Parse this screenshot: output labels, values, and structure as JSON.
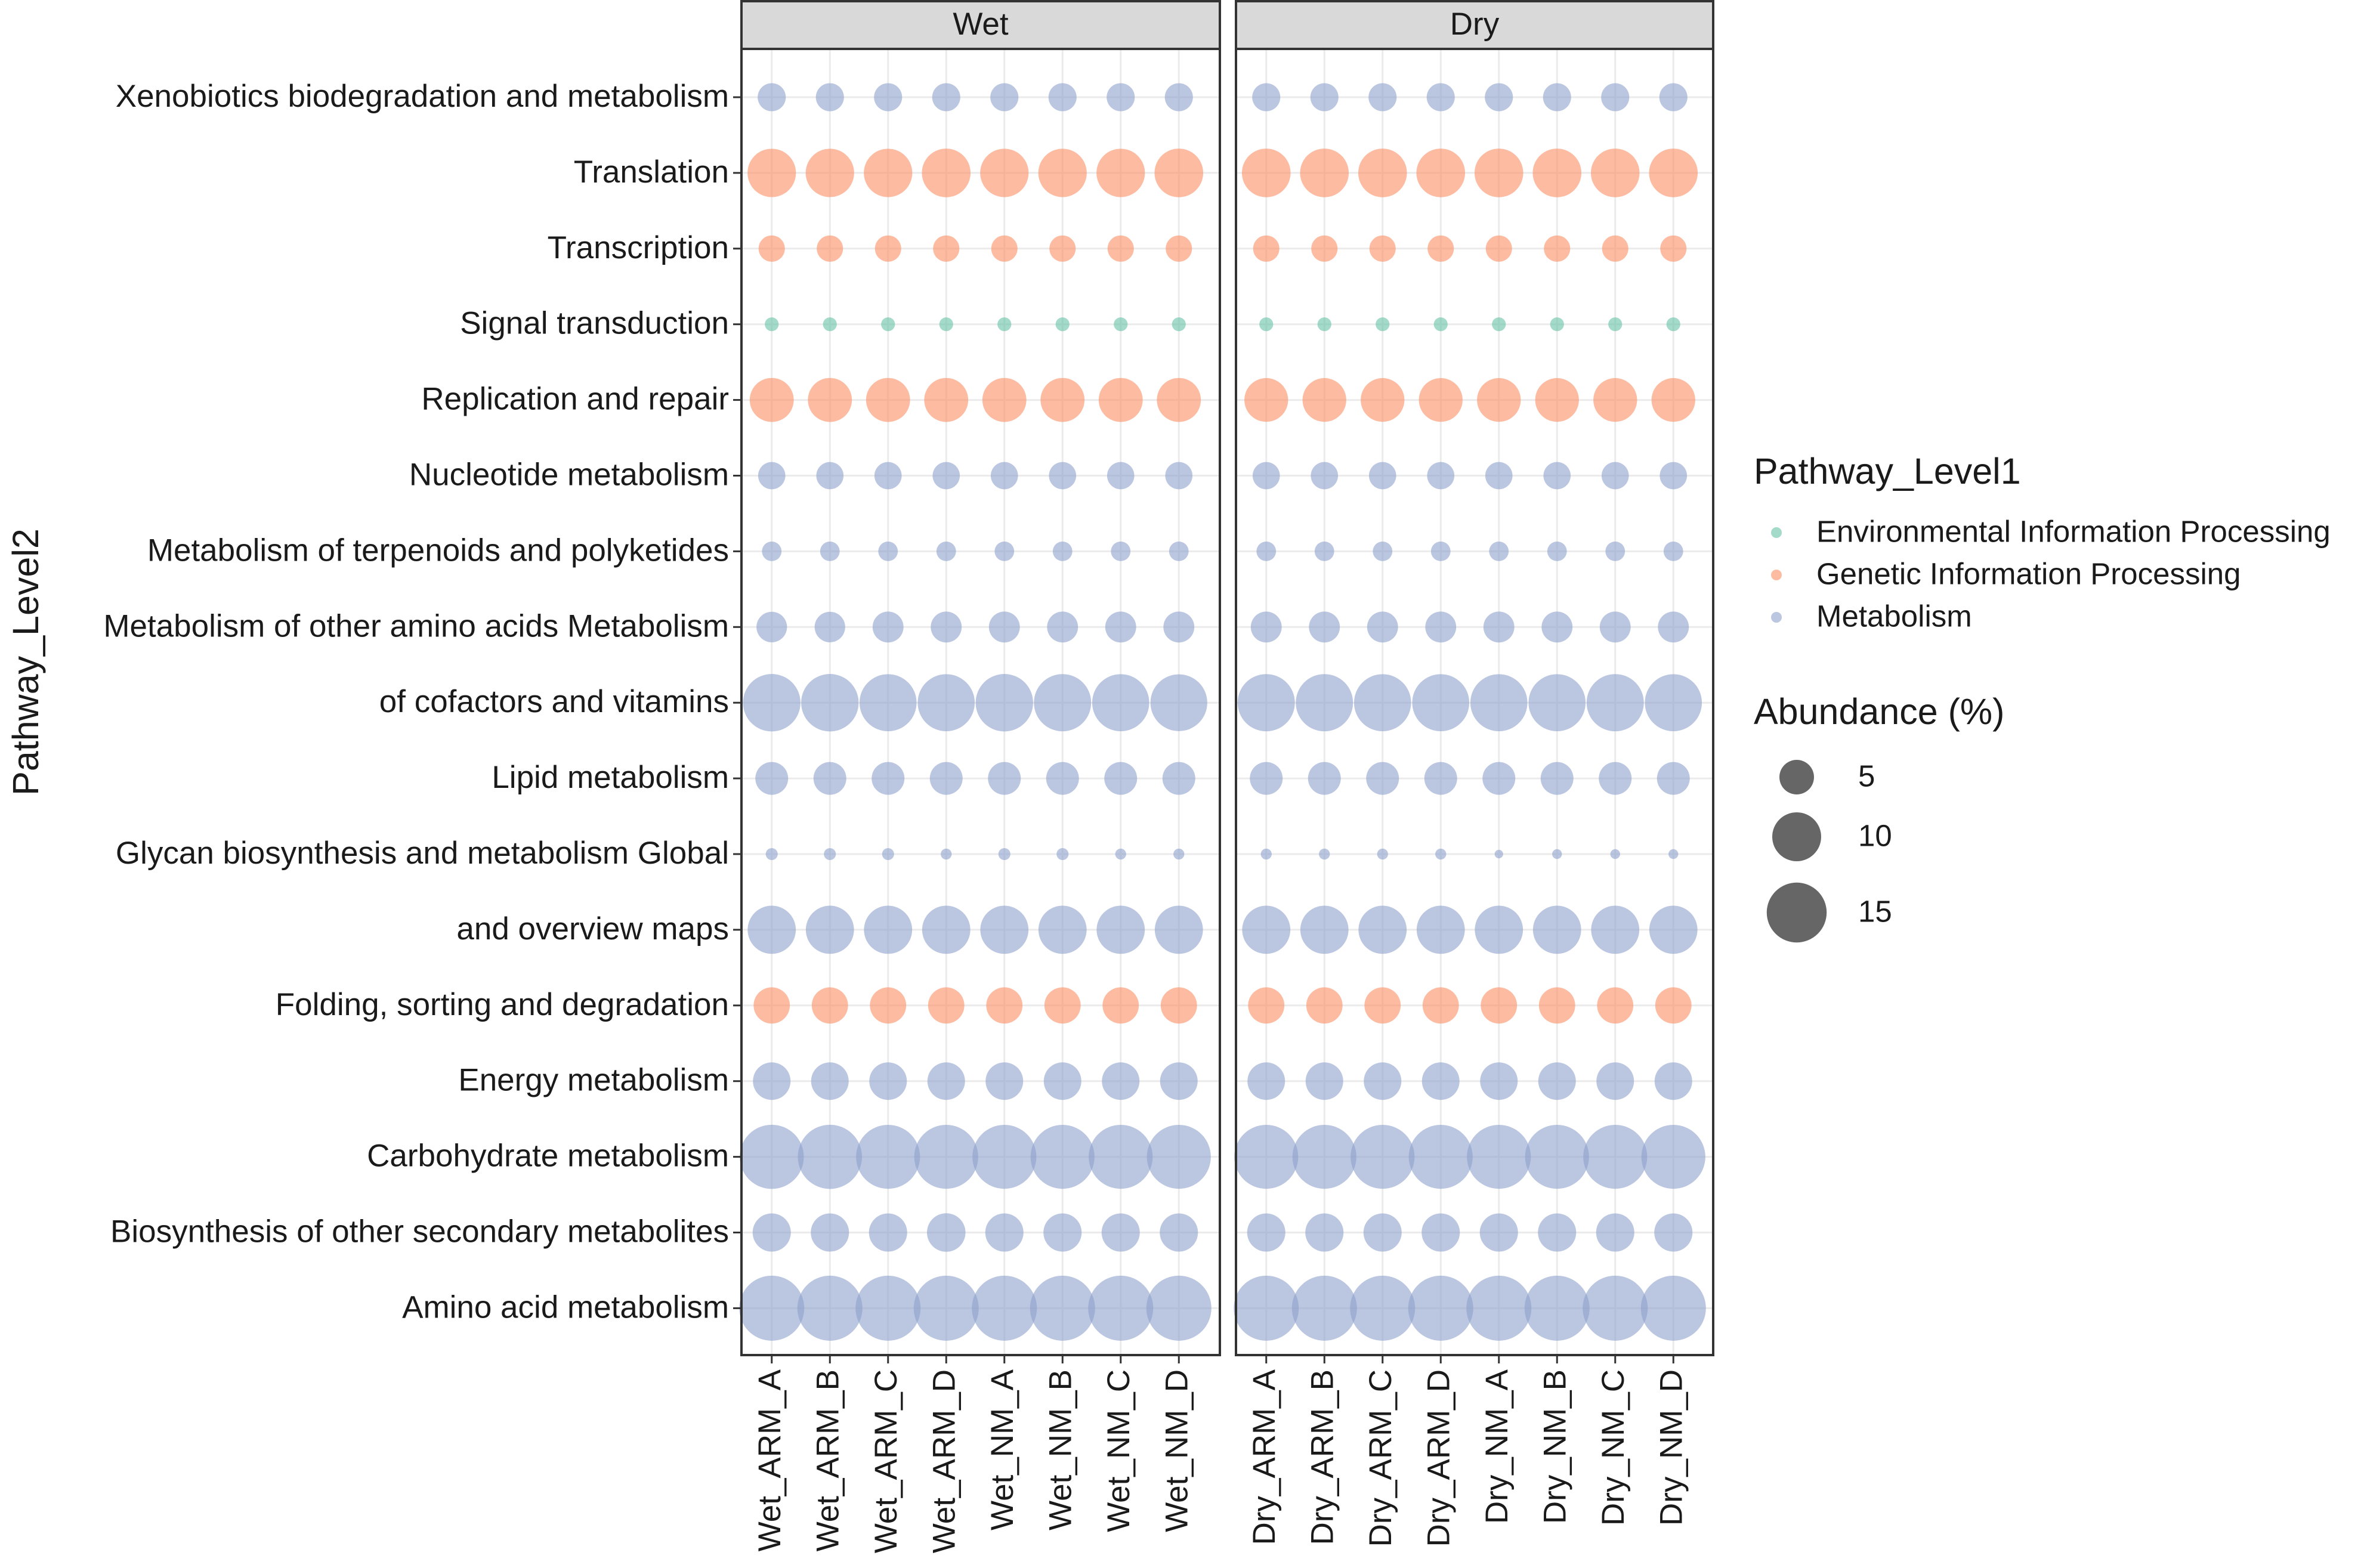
{
  "chart_data": {
    "type": "scatter",
    "subtype": "bubble",
    "ylabel": "Pathway_Level2",
    "facets": [
      "Wet",
      "Dry"
    ],
    "x_categories": {
      "Wet": [
        "Wet_ARM_A",
        "Wet_ARM_B",
        "Wet_ARM_C",
        "Wet_ARM_D",
        "Wet_NM_A",
        "Wet_NM_B",
        "Wet_NM_C",
        "Wet_NM_D"
      ],
      "Dry": [
        "Dry_ARM_A",
        "Dry_ARM_B",
        "Dry_ARM_C",
        "Dry_ARM_D",
        "Dry_NM_A",
        "Dry_NM_B",
        "Dry_NM_C",
        "Dry_NM_D"
      ]
    },
    "y_categories": [
      "Xenobiotics biodegradation and metabolism",
      "Translation",
      "Transcription",
      "Signal transduction",
      "Replication and repair",
      "Nucleotide metabolism",
      "Metabolism of terpenoids and polyketides",
      "Metabolism of other amino acids Metabolism",
      "of cofactors and vitamins",
      "Lipid metabolism",
      "Glycan biosynthesis and metabolism Global",
      "and overview maps",
      "Folding, sorting and degradation",
      "Energy metabolism",
      "Carbohydrate metabolism",
      "Biosynthesis of other secondary metabolites",
      "Amino acid metabolism"
    ],
    "groups": [
      {
        "name": "Environmental Information Processing",
        "color": "#66C2A5"
      },
      {
        "name": "Genetic Information Processing",
        "color": "#FC8D62"
      },
      {
        "name": "Metabolism",
        "color": "#8DA0CB"
      }
    ],
    "legend_color_title": "Pathway_Level1",
    "legend_size_title": "Abundance (%)",
    "size_breaks": [
      5,
      10,
      15
    ],
    "rows": [
      {
        "group": "Metabolism",
        "wet": [
          3.3,
          3.3,
          3.3,
          3.3,
          3.3,
          3.3,
          3.3,
          3.3
        ],
        "dry": [
          3.3,
          3.3,
          3.3,
          3.3,
          3.3,
          3.3,
          3.3,
          3.3
        ]
      },
      {
        "group": "Genetic Information Processing",
        "wet": [
          9.8,
          9.8,
          9.8,
          9.9,
          9.8,
          9.8,
          9.8,
          9.9
        ],
        "dry": [
          9.9,
          9.9,
          9.9,
          9.9,
          9.9,
          9.9,
          9.9,
          9.9
        ]
      },
      {
        "group": "Genetic Information Processing",
        "wet": [
          2.9,
          2.9,
          2.9,
          2.9,
          2.9,
          2.9,
          2.9,
          2.9
        ],
        "dry": [
          2.9,
          2.9,
          2.9,
          2.9,
          2.9,
          2.9,
          2.9,
          2.9
        ]
      },
      {
        "group": "Environmental Information Processing",
        "wet": [
          0.8,
          0.8,
          0.8,
          0.8,
          0.8,
          0.8,
          0.8,
          0.8
        ],
        "dry": [
          0.8,
          0.8,
          0.8,
          0.8,
          0.8,
          0.8,
          0.8,
          0.8
        ]
      },
      {
        "group": "Genetic Information Processing",
        "wet": [
          8.1,
          8.1,
          8.1,
          8.1,
          8.1,
          8.1,
          8.1,
          8.1
        ],
        "dry": [
          8.0,
          8.0,
          8.0,
          8.0,
          8.0,
          8.0,
          8.0,
          8.0
        ]
      },
      {
        "group": "Metabolism",
        "wet": [
          3.1,
          3.1,
          3.1,
          3.1,
          3.1,
          3.1,
          3.1,
          3.1
        ],
        "dry": [
          3.1,
          3.1,
          3.1,
          3.1,
          3.1,
          3.1,
          3.1,
          3.1
        ]
      },
      {
        "group": "Metabolism",
        "wet": [
          1.6,
          1.6,
          1.6,
          1.6,
          1.6,
          1.6,
          1.6,
          1.6
        ],
        "dry": [
          1.6,
          1.6,
          1.6,
          1.6,
          1.6,
          1.6,
          1.6,
          1.6
        ]
      },
      {
        "group": "Metabolism",
        "wet": [
          3.9,
          3.9,
          4.0,
          4.0,
          4.0,
          4.0,
          4.0,
          4.0
        ],
        "dry": [
          4.0,
          4.0,
          4.0,
          4.0,
          4.0,
          4.0,
          4.0,
          4.0
        ]
      },
      {
        "group": "Metabolism",
        "wet": [
          13.8,
          13.8,
          13.6,
          13.6,
          13.8,
          13.7,
          13.6,
          13.5
        ],
        "dry": [
          13.7,
          13.7,
          13.6,
          13.6,
          13.6,
          13.6,
          13.7,
          13.6
        ]
      },
      {
        "group": "Metabolism",
        "wet": [
          4.5,
          4.5,
          4.5,
          4.5,
          4.5,
          4.5,
          4.5,
          4.5
        ],
        "dry": [
          4.5,
          4.5,
          4.5,
          4.5,
          4.5,
          4.5,
          4.5,
          4.5
        ]
      },
      {
        "group": "Metabolism",
        "wet": [
          0.6,
          0.6,
          0.6,
          0.5,
          0.6,
          0.6,
          0.5,
          0.5
        ],
        "dry": [
          0.5,
          0.5,
          0.5,
          0.5,
          0.3,
          0.4,
          0.4,
          0.4
        ]
      },
      {
        "group": "Metabolism",
        "wet": [
          9.7,
          9.7,
          9.7,
          9.7,
          9.7,
          9.7,
          9.7,
          9.7
        ],
        "dry": [
          9.7,
          9.7,
          9.7,
          9.7,
          9.7,
          9.7,
          9.7,
          9.7
        ]
      },
      {
        "group": "Genetic Information Processing",
        "wet": [
          5.5,
          5.5,
          5.5,
          5.5,
          5.5,
          5.5,
          5.5,
          5.5
        ],
        "dry": [
          5.5,
          5.5,
          5.5,
          5.5,
          5.5,
          5.5,
          5.5,
          5.5
        ]
      },
      {
        "group": "Metabolism",
        "wet": [
          5.9,
          5.9,
          5.9,
          5.9,
          5.9,
          5.9,
          5.9,
          5.9
        ],
        "dry": [
          5.9,
          5.9,
          5.9,
          5.9,
          5.9,
          5.9,
          5.9,
          5.9
        ]
      },
      {
        "group": "Metabolism",
        "wet": [
          17.2,
          17.2,
          17.1,
          17.1,
          17.1,
          17.1,
          17.1,
          17.1
        ],
        "dry": [
          17.1,
          17.1,
          17.1,
          17.1,
          17.1,
          17.1,
          17.1,
          17.1
        ]
      },
      {
        "group": "Metabolism",
        "wet": [
          6.1,
          6.1,
          6.1,
          6.2,
          6.1,
          6.1,
          6.1,
          6.1
        ],
        "dry": [
          6.1,
          6.1,
          6.1,
          6.1,
          6.1,
          6.1,
          6.1,
          6.1
        ]
      },
      {
        "group": "Metabolism",
        "wet": [
          17.7,
          17.7,
          17.7,
          17.7,
          17.7,
          17.7,
          17.7,
          17.7
        ],
        "dry": [
          17.7,
          17.7,
          17.7,
          17.7,
          17.7,
          17.7,
          17.7,
          17.7
        ]
      }
    ]
  }
}
